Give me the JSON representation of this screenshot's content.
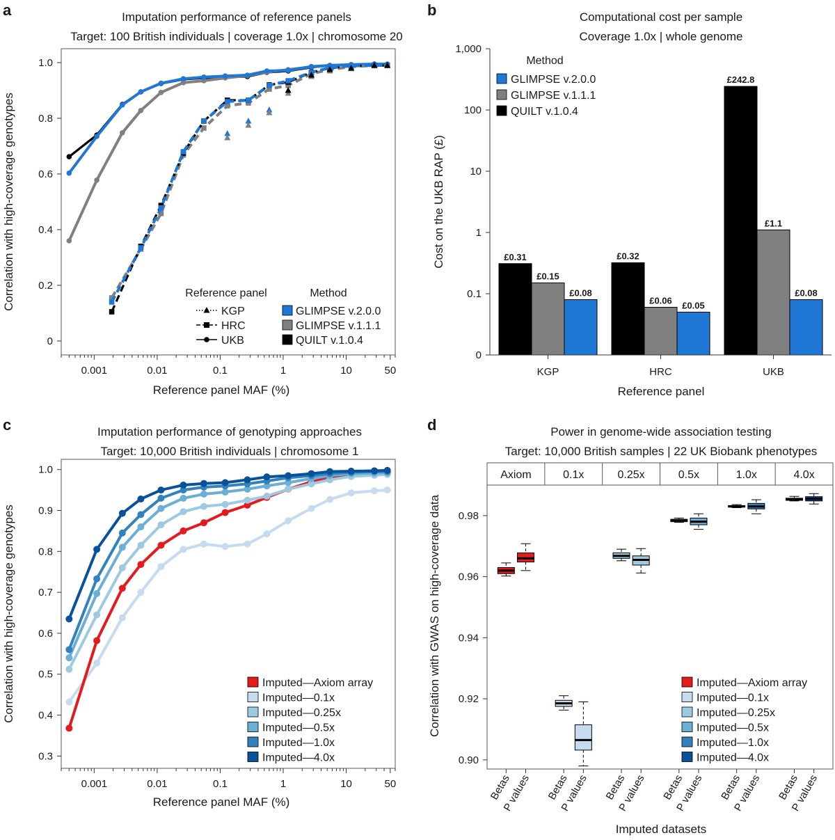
{
  "chart_data": [
    {
      "panel": "a",
      "type": "line",
      "title": "Imputation performance of reference panels",
      "subtitle": "Target: 100 British individuals | coverage 1.0x | chromosome 20",
      "xlabel": "Reference panel MAF (%)",
      "ylabel": "Correlation with high-coverage genotypes",
      "xscale": "log",
      "xlim": [
        0.0003,
        60
      ],
      "ylim": [
        -0.05,
        1.05
      ],
      "xticks": [
        0.001,
        0.01,
        0.1,
        1,
        10,
        50
      ],
      "xtick_labels": [
        "0.001",
        "0.01",
        "0.1",
        "1",
        "10",
        "50"
      ],
      "yticks": [
        0,
        0.2,
        0.4,
        0.6,
        0.8,
        1.0
      ],
      "ytick_labels": [
        "0",
        "0.2",
        "0.4",
        "0.6",
        "0.8",
        "1.0"
      ],
      "method_colors": {
        "GLIMPSE v.2.0.0": "#1f78d6",
        "GLIMPSE v.1.1.1": "#808080",
        "QUILT v.1.0.4": "#000000"
      },
      "series": [
        {
          "panel_ref": "UKB",
          "method": "QUILT v.1.0.4",
          "color": "#000000",
          "marker": "circle",
          "dash": "solid",
          "x": [
            0.0004,
            0.0011,
            0.0028,
            0.0055,
            0.0115,
            0.026,
            0.055,
            0.12,
            0.27,
            0.55,
            1.2,
            2.8,
            5.5,
            12,
            28,
            45
          ],
          "y": [
            0.662,
            0.74,
            0.85,
            0.895,
            0.925,
            0.94,
            0.945,
            0.948,
            0.95,
            0.965,
            0.97,
            0.983,
            0.99,
            0.992,
            0.995,
            0.994
          ]
        },
        {
          "panel_ref": "UKB",
          "method": "GLIMPSE v.1.1.1",
          "color": "#808080",
          "marker": "circle",
          "dash": "solid",
          "x": [
            0.0004,
            0.0011,
            0.0028,
            0.0055,
            0.0115,
            0.026,
            0.055,
            0.12,
            0.27,
            0.55,
            1.2,
            2.8,
            5.5,
            12,
            28,
            45
          ],
          "y": [
            0.36,
            0.578,
            0.748,
            0.828,
            0.893,
            0.928,
            0.935,
            0.945,
            0.953,
            0.966,
            0.975,
            0.985,
            0.99,
            0.992,
            0.994,
            0.994
          ]
        },
        {
          "panel_ref": "UKB",
          "method": "GLIMPSE v.2.0.0",
          "color": "#1f78d6",
          "marker": "circle",
          "dash": "solid",
          "x": [
            0.0004,
            0.0011,
            0.0028,
            0.0055,
            0.0115,
            0.026,
            0.055,
            0.12,
            0.27,
            0.55,
            1.2,
            2.8,
            5.5,
            12,
            28,
            45
          ],
          "y": [
            0.603,
            0.735,
            0.848,
            0.895,
            0.926,
            0.942,
            0.948,
            0.952,
            0.955,
            0.97,
            0.972,
            0.986,
            0.99,
            0.993,
            0.995,
            0.995
          ]
        },
        {
          "panel_ref": "HRC",
          "method": "GLIMPSE v.1.1.1",
          "color": "#808080",
          "marker": "square",
          "dash": "dashed",
          "x": [
            0.0019,
            0.0055,
            0.0115,
            0.026,
            0.055,
            0.13,
            0.28,
            0.6,
            1.2,
            2.8,
            5.5,
            12,
            28,
            45
          ],
          "y": [
            0.155,
            0.33,
            0.458,
            0.668,
            0.765,
            0.845,
            0.855,
            0.905,
            0.918,
            0.96,
            0.975,
            0.985,
            0.99,
            0.99
          ]
        },
        {
          "panel_ref": "HRC",
          "method": "QUILT v.1.0.4",
          "color": "#000000",
          "marker": "square",
          "dash": "dashed",
          "x": [
            0.0019,
            0.0055,
            0.0115,
            0.026,
            0.055,
            0.13,
            0.28,
            0.6,
            1.2,
            2.8,
            5.5,
            12,
            28,
            45
          ],
          "y": [
            0.105,
            0.34,
            0.487,
            0.675,
            0.79,
            0.865,
            0.865,
            0.92,
            0.93,
            0.965,
            0.98,
            0.988,
            0.99,
            0.99
          ]
        },
        {
          "panel_ref": "HRC",
          "method": "GLIMPSE v.2.0.0",
          "color": "#1f78d6",
          "marker": "square",
          "dash": "dashed",
          "x": [
            0.0019,
            0.0055,
            0.0115,
            0.026,
            0.055,
            0.13,
            0.28,
            0.6,
            1.2,
            2.8,
            5.5,
            12,
            28,
            45
          ],
          "y": [
            0.14,
            0.335,
            0.478,
            0.68,
            0.79,
            0.86,
            0.865,
            0.918,
            0.935,
            0.965,
            0.982,
            0.988,
            0.99,
            0.99
          ]
        },
        {
          "panel_ref": "KGP",
          "method": "GLIMPSE v.2.0.0",
          "color": "#1f78d6",
          "marker": "triangle",
          "dash": "dotted",
          "x": [
            0.13,
            0.28,
            0.6,
            1.2,
            2.8,
            5.5,
            12,
            28,
            45
          ],
          "y": [
            0.745,
            0.79,
            0.83,
            0.9,
            0.955,
            0.975,
            0.98,
            0.99,
            0.99
          ]
        },
        {
          "panel_ref": "KGP",
          "method": "GLIMPSE v.1.1.1",
          "color": "#808080",
          "marker": "triangle",
          "dash": "dotted",
          "x": [
            0.13,
            0.28,
            0.6,
            1.2,
            2.8,
            5.5,
            12,
            28,
            45
          ],
          "y": [
            0.73,
            0.775,
            0.82,
            0.89,
            0.95,
            0.97,
            0.978,
            0.988,
            0.99
          ]
        },
        {
          "panel_ref": "KGP",
          "method": "QUILT v.1.0.4",
          "color": "#000000",
          "marker": "triangle",
          "dash": "dotted",
          "x": [
            1.2,
            2.8,
            5.5,
            12,
            28,
            45
          ],
          "y": [
            0.9,
            0.955,
            0.975,
            0.98,
            0.99,
            0.99
          ]
        }
      ],
      "legend": {
        "panel_title": "Reference panel",
        "panel_items": [
          "KGP",
          "HRC",
          "UKB"
        ],
        "method_title": "Method",
        "method_items": [
          "GLIMPSE v.2.0.0",
          "GLIMPSE v.1.1.1",
          "QUILT v.1.0.4"
        ],
        "placement": "bottom-right"
      }
    },
    {
      "panel": "b",
      "type": "bar",
      "title": "Computational cost per sample",
      "subtitle": "Coverage 1.0x | whole genome",
      "xlabel": "Reference panel",
      "ylabel": "Cost on the UKB RAP (£)",
      "yscale": "log",
      "ylim": [
        0.01,
        1000
      ],
      "yticks": [
        0.01,
        0.1,
        1,
        10,
        100,
        1000
      ],
      "ytick_labels": [
        "0",
        "0.1",
        "1",
        "10",
        "100",
        "1,000"
      ],
      "categories": [
        "KGP",
        "HRC",
        "UKB"
      ],
      "series": [
        {
          "name": "QUILT v.1.0.4",
          "color": "#000000",
          "values": [
            0.31,
            0.32,
            242.8
          ],
          "labels": [
            "£0.31",
            "£0.32",
            "£242.8"
          ]
        },
        {
          "name": "GLIMPSE v.1.1.1",
          "color": "#808080",
          "values": [
            0.15,
            0.06,
            1.1
          ],
          "labels": [
            "£0.15",
            "£0.06",
            "£1.1"
          ]
        },
        {
          "name": "GLIMPSE v.2.0.0",
          "color": "#1f78d6",
          "values": [
            0.08,
            0.05,
            0.08
          ],
          "labels": [
            "£0.08",
            "£0.05",
            "£0.08"
          ]
        }
      ],
      "legend": {
        "title": "Method",
        "items": [
          "GLIMPSE v.2.0.0",
          "GLIMPSE v.1.1.1",
          "QUILT v.1.0.4"
        ],
        "placement": "top-left"
      }
    },
    {
      "panel": "c",
      "type": "line",
      "title": "Imputation performance of genotyping approaches",
      "subtitle": "Target: 10,000 British individuals | chromosome 1",
      "xlabel": "Reference panel MAF (%)",
      "ylabel": "Correlation with high-coverage genotypes",
      "xscale": "log",
      "xlim": [
        0.0003,
        60
      ],
      "ylim": [
        0.27,
        1.025
      ],
      "xticks": [
        0.001,
        0.01,
        0.1,
        1,
        10,
        50
      ],
      "xtick_labels": [
        "0.001",
        "0.01",
        "0.1",
        "1",
        "10",
        "50"
      ],
      "yticks": [
        0.3,
        0.4,
        0.5,
        0.6,
        0.7,
        0.8,
        0.9,
        1.0
      ],
      "ytick_labels": [
        "0.3",
        "0.4",
        "0.5",
        "0.6",
        "0.7",
        "0.8",
        "0.9",
        "1.0"
      ],
      "x": [
        0.0004,
        0.0011,
        0.0028,
        0.0055,
        0.0115,
        0.026,
        0.055,
        0.12,
        0.27,
        0.55,
        1.2,
        2.8,
        5.5,
        12,
        28,
        45
      ],
      "series": [
        {
          "name": "Imputed—0.1x",
          "color": "#c6dbef",
          "values": [
            0.432,
            0.527,
            0.638,
            0.7,
            0.763,
            0.805,
            0.818,
            0.812,
            0.818,
            0.843,
            0.875,
            0.905,
            0.927,
            0.943,
            0.948,
            0.95
          ]
        },
        {
          "name": "Imputed—Axiom array",
          "color": "#e41a1c",
          "values": [
            0.368,
            0.582,
            0.71,
            0.768,
            0.815,
            0.85,
            0.87,
            0.895,
            0.913,
            0.932,
            0.952,
            0.97,
            0.98,
            0.988,
            0.991,
            0.992
          ]
        },
        {
          "name": "Imputed—0.25x",
          "color": "#9ecae1",
          "values": [
            0.512,
            0.645,
            0.76,
            0.815,
            0.865,
            0.897,
            0.91,
            0.915,
            0.925,
            0.935,
            0.952,
            0.965,
            0.975,
            0.983,
            0.986,
            0.988
          ]
        },
        {
          "name": "Imputed—0.5x",
          "color": "#6baed6",
          "values": [
            0.54,
            0.697,
            0.81,
            0.86,
            0.905,
            0.93,
            0.94,
            0.945,
            0.952,
            0.96,
            0.968,
            0.978,
            0.985,
            0.99,
            0.991,
            0.992
          ]
        },
        {
          "name": "Imputed—1.0x",
          "color": "#3182bd",
          "values": [
            0.56,
            0.733,
            0.845,
            0.89,
            0.93,
            0.95,
            0.957,
            0.96,
            0.965,
            0.972,
            0.98,
            0.985,
            0.99,
            0.993,
            0.995,
            0.995
          ]
        },
        {
          "name": "Imputed—4.0x",
          "color": "#08519c",
          "values": [
            0.635,
            0.805,
            0.893,
            0.928,
            0.95,
            0.962,
            0.966,
            0.968,
            0.975,
            0.982,
            0.985,
            0.99,
            0.995,
            0.996,
            0.997,
            0.998
          ]
        }
      ],
      "legend": {
        "order": [
          "Imputed—Axiom array",
          "Imputed—0.1x",
          "Imputed—0.25x",
          "Imputed—0.5x",
          "Imputed—1.0x",
          "Imputed—4.0x"
        ],
        "placement": "bottom-right"
      }
    },
    {
      "panel": "d",
      "type": "box",
      "title": "Power in genome-wide association testing",
      "subtitle": "Target: 10,000 British samples | 22 UK Biobank phenotypes",
      "xlabel": "Imputed datasets",
      "ylabel": "Correlation with GWAS on high-coverage data",
      "ylim": [
        0.897,
        0.99
      ],
      "yticks": [
        0.9,
        0.92,
        0.94,
        0.96,
        0.98
      ],
      "ytick_labels": [
        "0.90",
        "0.92",
        "0.94",
        "0.96",
        "0.98"
      ],
      "groups": [
        "Axiom",
        "0.1x",
        "0.25x",
        "0.5x",
        "1.0x",
        "4.0x"
      ],
      "group_colors": [
        "#e41a1c",
        "#c6dbef",
        "#9ecae1",
        "#6baed6",
        "#3182bd",
        "#08519c"
      ],
      "x_labels": [
        "Betas",
        "P values"
      ],
      "boxes": [
        {
          "group": "Axiom",
          "stat": "Betas",
          "min": 0.9602,
          "q1": 0.961,
          "median": 0.962,
          "q3": 0.963,
          "max": 0.9645
        },
        {
          "group": "Axiom",
          "stat": "P values",
          "min": 0.962,
          "q1": 0.9648,
          "median": 0.966,
          "q3": 0.9678,
          "max": 0.9708
        },
        {
          "group": "0.1x",
          "stat": "Betas",
          "min": 0.9163,
          "q1": 0.9175,
          "median": 0.9185,
          "q3": 0.9195,
          "max": 0.921
        },
        {
          "group": "0.1x",
          "stat": "P values",
          "min": 0.898,
          "q1": 0.9032,
          "median": 0.9065,
          "q3": 0.9115,
          "max": 0.919
        },
        {
          "group": "0.25x",
          "stat": "Betas",
          "min": 0.9652,
          "q1": 0.966,
          "median": 0.9668,
          "q3": 0.9678,
          "max": 0.969
        },
        {
          "group": "0.25x",
          "stat": "P values",
          "min": 0.9612,
          "q1": 0.9638,
          "median": 0.9655,
          "q3": 0.9668,
          "max": 0.9692
        },
        {
          "group": "0.5x",
          "stat": "Betas",
          "min": 0.9778,
          "q1": 0.978,
          "median": 0.9785,
          "q3": 0.9788,
          "max": 0.9792
        },
        {
          "group": "0.5x",
          "stat": "P values",
          "min": 0.9755,
          "q1": 0.977,
          "median": 0.978,
          "q3": 0.9792,
          "max": 0.9806
        },
        {
          "group": "1.0x",
          "stat": "Betas",
          "min": 0.9826,
          "q1": 0.9828,
          "median": 0.983,
          "q3": 0.9833,
          "max": 0.9836
        },
        {
          "group": "1.0x",
          "stat": "P values",
          "min": 0.9806,
          "q1": 0.9822,
          "median": 0.983,
          "q3": 0.984,
          "max": 0.9852
        },
        {
          "group": "4.0x",
          "stat": "Betas",
          "min": 0.9848,
          "q1": 0.985,
          "median": 0.9853,
          "q3": 0.9857,
          "max": 0.9863
        },
        {
          "group": "4.0x",
          "stat": "P values",
          "min": 0.9838,
          "q1": 0.9848,
          "median": 0.9855,
          "q3": 0.9862,
          "max": 0.9872
        }
      ],
      "legend": {
        "items": [
          "Imputed—Axiom array",
          "Imputed—0.1x",
          "Imputed—0.25x",
          "Imputed—0.5x",
          "Imputed—1.0x",
          "Imputed—4.0x"
        ],
        "placement": "bottom-right"
      }
    }
  ]
}
